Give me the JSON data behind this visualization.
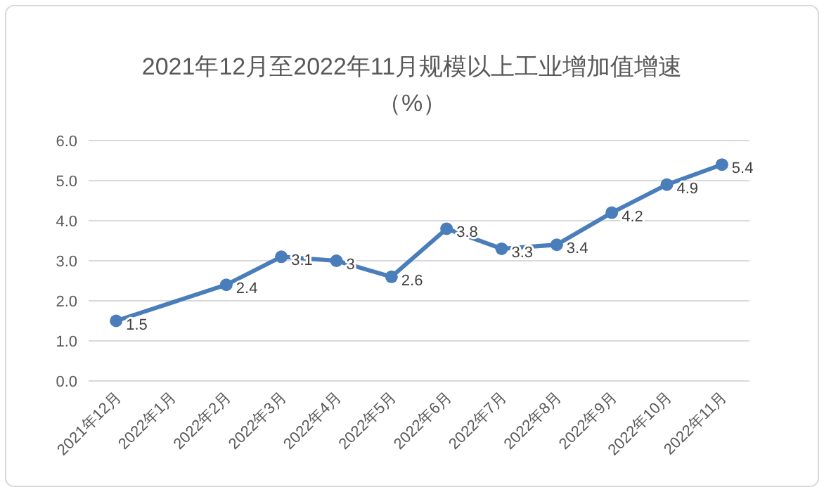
{
  "chart_data": {
    "type": "line",
    "title": "2021年12月至2022年11月规模以上工业增加值增速",
    "subtitle": "（%）",
    "categories": [
      "2021年12月",
      "2022年1月",
      "2022年2月",
      "2022年3月",
      "2022年4月",
      "2022年5月",
      "2022年6月",
      "2022年7月",
      "2022年8月",
      "2022年9月",
      "2022年10月",
      "2022年11月"
    ],
    "series": [
      {
        "color": "#4a7ebb",
        "values": [
          1.5,
          null,
          2.4,
          3.1,
          3,
          2.6,
          3.8,
          3.3,
          3.4,
          4.2,
          4.9,
          5.4
        ]
      }
    ],
    "ylim": [
      0,
      6
    ],
    "yticks": [
      {
        "value": 0,
        "label": "0.0"
      },
      {
        "value": 1,
        "label": "1.0"
      },
      {
        "value": 2,
        "label": "2.0"
      },
      {
        "value": 3,
        "label": "3.0"
      },
      {
        "value": 4,
        "label": "4.0"
      },
      {
        "value": 5,
        "label": "5.0"
      },
      {
        "value": 6,
        "label": "6.0"
      }
    ],
    "grid": "y",
    "marker": "circle",
    "line_style": "solid",
    "data_labels": true
  }
}
